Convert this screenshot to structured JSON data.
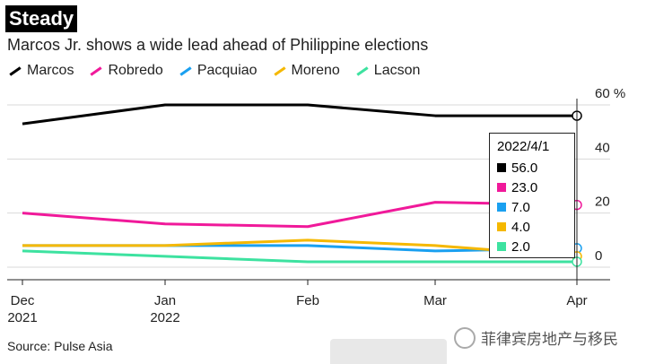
{
  "header": {
    "badge": "Steady",
    "subtitle": "Marcos Jr. shows a wide lead ahead of Philippine elections"
  },
  "footer": {
    "source": "Source: Pulse Asia",
    "watermark": "菲律宾房地产与移民"
  },
  "tooltip": {
    "date": "2022/4/1",
    "rows": [
      {
        "value": "56.0",
        "color": "#000000"
      },
      {
        "value": "23.0",
        "color": "#f0199a"
      },
      {
        "value": "7.0",
        "color": "#1aa0f0"
      },
      {
        "value": "4.0",
        "color": "#f5b800"
      },
      {
        "value": "2.0",
        "color": "#3de2a0"
      }
    ]
  },
  "chart_data": {
    "type": "line",
    "x": [
      "Dec 2021",
      "Jan 2022",
      "Feb",
      "Mar",
      "Apr"
    ],
    "x_ticks": [
      [
        "Dec",
        "2021"
      ],
      [
        "Jan",
        "2022"
      ],
      [
        "Feb",
        ""
      ],
      [
        "Mar",
        ""
      ],
      [
        "Apr",
        ""
      ]
    ],
    "y_ticks": [
      "60 %",
      "40",
      "20",
      "0"
    ],
    "y_tick_values": [
      60,
      40,
      20,
      0
    ],
    "ylim": [
      -4,
      64
    ],
    "grid": true,
    "legend_position": "top-left",
    "series": [
      {
        "name": "Marcos",
        "color": "#000000",
        "values": [
          53,
          60,
          60,
          56,
          56
        ]
      },
      {
        "name": "Robredo",
        "color": "#f0199a",
        "values": [
          20,
          16,
          15,
          24,
          23
        ]
      },
      {
        "name": "Pacquiao",
        "color": "#1aa0f0",
        "values": [
          8,
          8,
          8,
          6,
          7
        ]
      },
      {
        "name": "Moreno",
        "color": "#f5b800",
        "values": [
          8,
          8,
          10,
          8,
          4
        ]
      },
      {
        "name": "Lacson",
        "color": "#3de2a0",
        "values": [
          6,
          4,
          2,
          2,
          2
        ]
      }
    ]
  }
}
